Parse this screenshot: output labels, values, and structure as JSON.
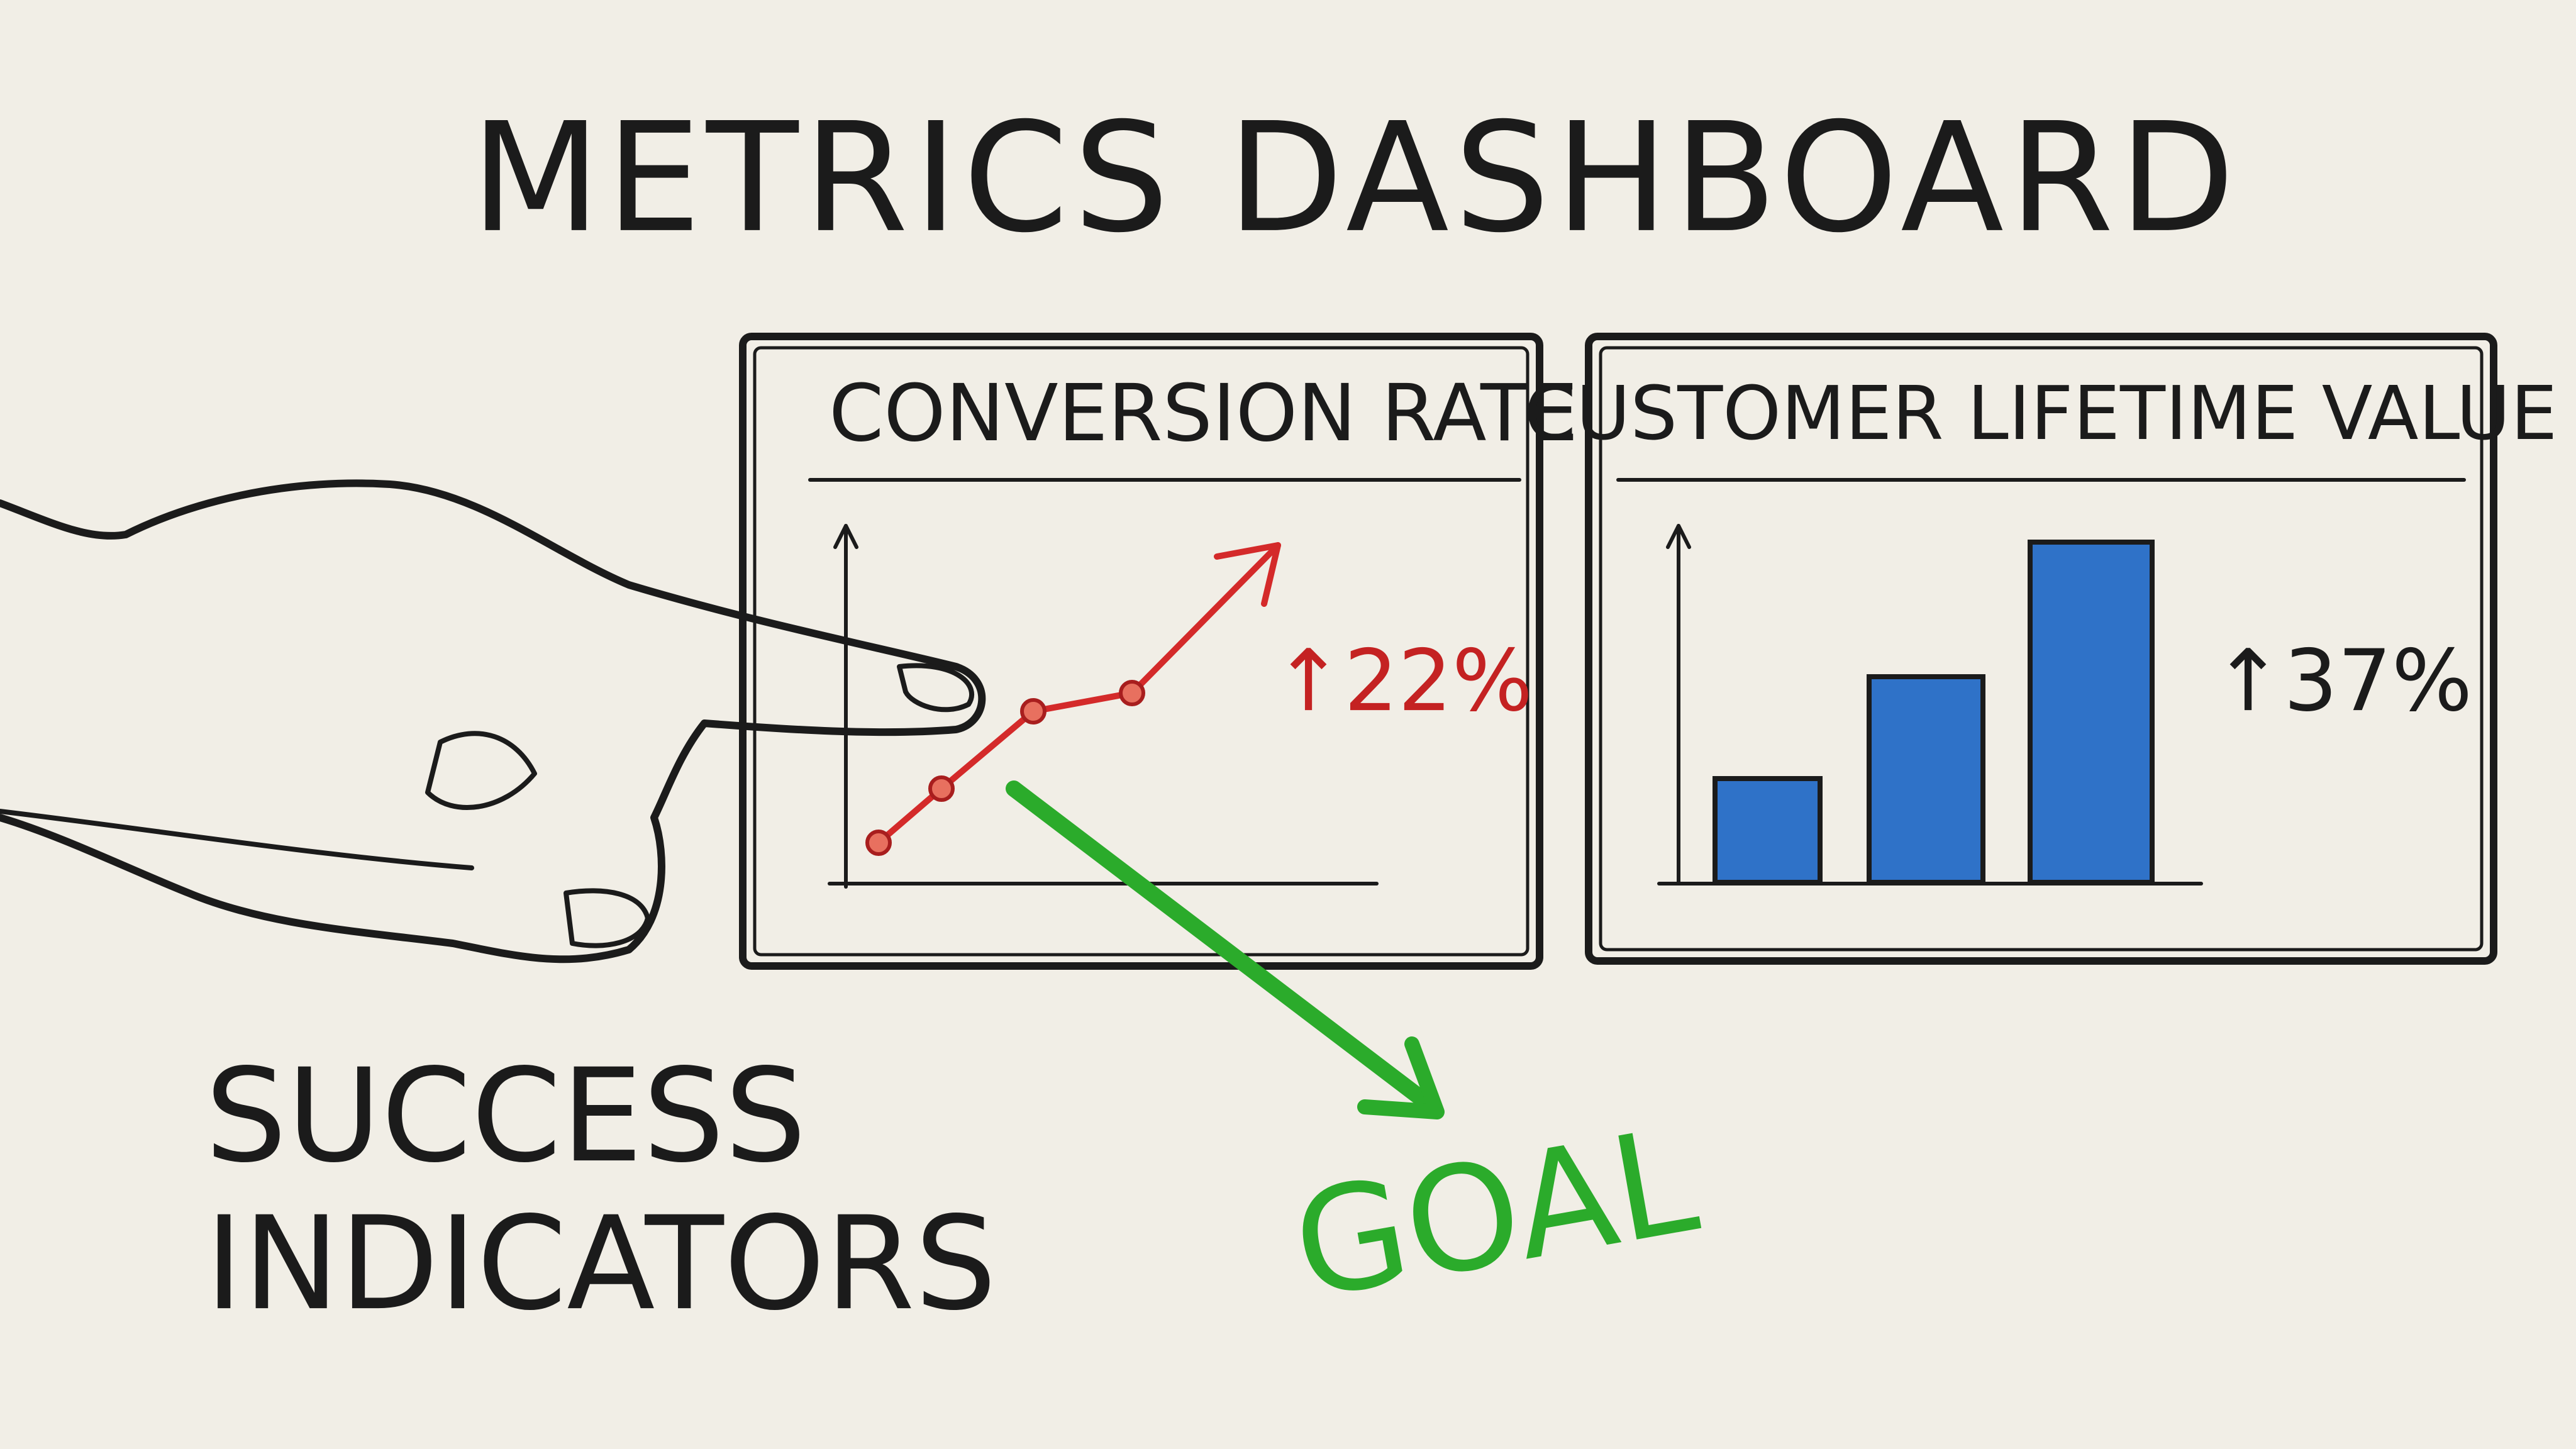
{
  "title": "METRICS DASHBOARD",
  "panels": [
    {
      "title": "CONVERSION RATE",
      "change": "↑22%"
    },
    {
      "title": "CUSTOMER LIFETIME VALUE",
      "change": "↑37%"
    }
  ],
  "side_label": [
    "SUCCESS",
    "INDICATORS"
  ],
  "goal_label": "GOAL"
}
